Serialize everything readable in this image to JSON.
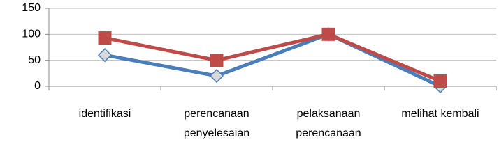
{
  "chart_data": {
    "type": "line",
    "categories": [
      "identifikasi",
      "perencanaan penyelesaian",
      "pelaksanaan perencanaan",
      "melihat kembali"
    ],
    "series": [
      {
        "color": "#4a7ebb",
        "values": [
          60,
          20,
          100,
          0
        ]
      },
      {
        "color": "#be4b48",
        "values": [
          93,
          50,
          100,
          10
        ]
      }
    ],
    "ylim": [
      0,
      150
    ],
    "yticks": [
      0,
      50,
      100,
      150
    ],
    "grid": true
  }
}
